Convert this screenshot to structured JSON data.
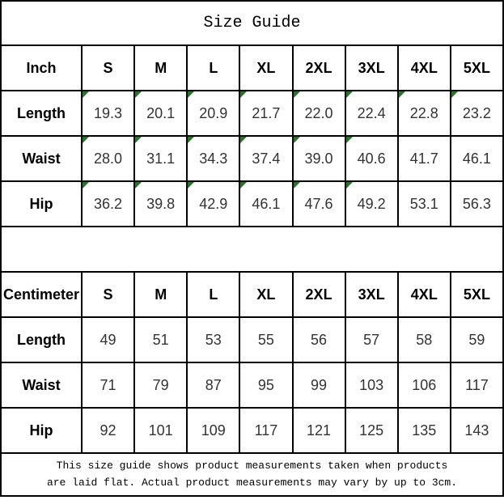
{
  "title": "Size Guide",
  "colors": {
    "flag_green": "#217a21",
    "border": "#000000",
    "header_text": "#000000",
    "data_text": "#333333",
    "background": "#ffffff"
  },
  "inch_table": {
    "headers": [
      "Inch",
      "S",
      "M",
      "L",
      "XL",
      "2XL",
      "3XL",
      "4XL",
      "5XL"
    ],
    "rows": [
      {
        "label": "Length",
        "values": [
          "19.3",
          "20.1",
          "20.9",
          "21.7",
          "22.0",
          "22.4",
          "22.8",
          "23.2"
        ],
        "flags": [
          true,
          true,
          true,
          true,
          true,
          true,
          true,
          true
        ]
      },
      {
        "label": "Waist",
        "values": [
          "28.0",
          "31.1",
          "34.3",
          "37.4",
          "39.0",
          "40.6",
          "41.7",
          "46.1"
        ],
        "flags": [
          true,
          true,
          true,
          true,
          true,
          true,
          false,
          false
        ]
      },
      {
        "label": "Hip",
        "values": [
          "36.2",
          "39.8",
          "42.9",
          "46.1",
          "47.6",
          "49.2",
          "53.1",
          "56.3"
        ],
        "flags": [
          true,
          true,
          true,
          true,
          true,
          true,
          false,
          false
        ]
      }
    ]
  },
  "cm_table": {
    "headers": [
      "Centimeter",
      "S",
      "M",
      "L",
      "XL",
      "2XL",
      "3XL",
      "4XL",
      "5XL"
    ],
    "rows": [
      {
        "label": "Length",
        "values": [
          "49",
          "51",
          "53",
          "55",
          "56",
          "57",
          "58",
          "59"
        ]
      },
      {
        "label": "Waist",
        "values": [
          "71",
          "79",
          "87",
          "95",
          "99",
          "103",
          "106",
          "117"
        ]
      },
      {
        "label": "Hip",
        "values": [
          "92",
          "101",
          "109",
          "117",
          "121",
          "125",
          "135",
          "143"
        ]
      }
    ]
  },
  "footer": {
    "line1": "This size guide shows product measurements taken when products",
    "line2": "are laid flat. Actual product measurements may vary by up to 3cm."
  }
}
